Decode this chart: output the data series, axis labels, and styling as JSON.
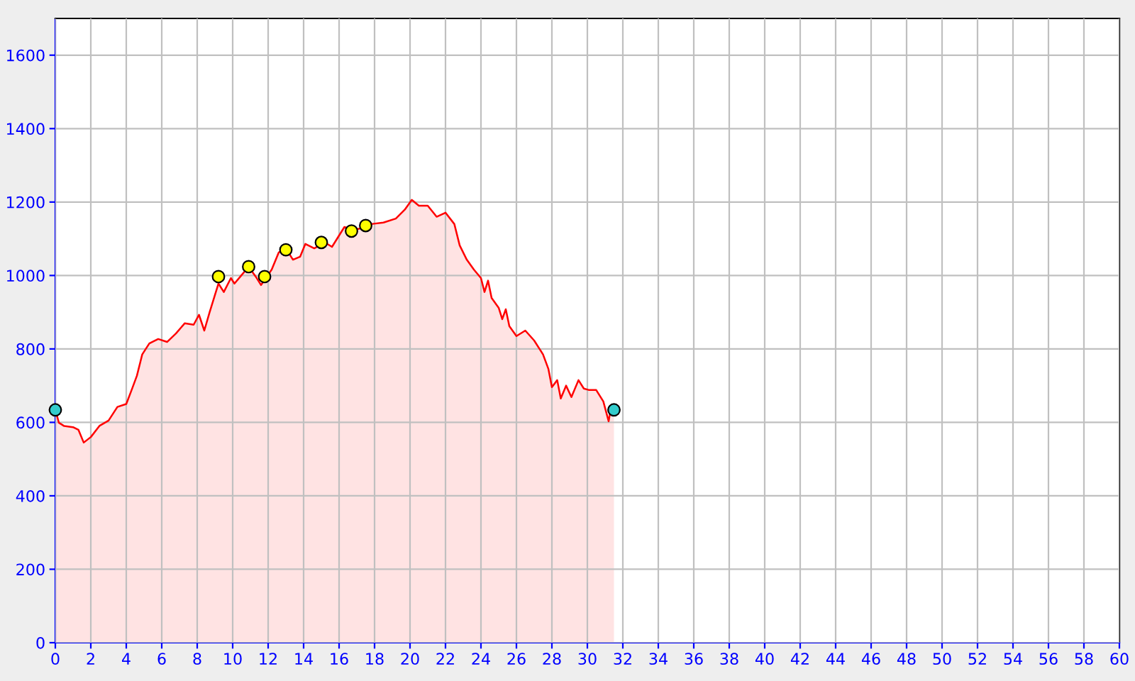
{
  "chart_data": {
    "type": "area",
    "xlim": [
      0,
      60
    ],
    "ylim": [
      0,
      1700
    ],
    "xticks": [
      0,
      2,
      4,
      6,
      8,
      10,
      12,
      14,
      16,
      18,
      20,
      22,
      24,
      26,
      28,
      30,
      32,
      34,
      36,
      38,
      40,
      42,
      44,
      46,
      48,
      50,
      52,
      54,
      56,
      58,
      60
    ],
    "yticks": [
      0,
      200,
      400,
      600,
      800,
      1000,
      1200,
      1400,
      1600
    ],
    "grid": true,
    "series": [
      {
        "color": "#ff0000",
        "x": [
          0,
          0.2,
          0.5,
          1.0,
          1.3,
          1.6,
          2,
          2.5,
          3,
          3.5,
          4,
          4.3,
          4.6,
          4.9,
          5.3,
          5.8,
          6.3,
          6.8,
          7.3,
          7.8,
          8.1,
          8.4,
          8.7,
          9.2,
          9.5,
          9.9,
          10.1,
          10.5,
          10.9,
          11.3,
          11.6,
          12.2,
          12.6,
          13,
          13.4,
          13.8,
          14.1,
          14.6,
          15.2,
          15.6,
          16.3,
          16.8,
          17.2,
          17.8,
          18.5,
          19.2,
          19.7,
          20.1,
          20.5,
          21,
          21.5,
          22,
          22.5,
          22.8,
          23.2,
          23.6,
          24,
          24.2,
          24.4,
          24.6,
          25,
          25.2,
          25.4,
          25.6,
          26,
          26.5,
          27,
          27.5,
          27.8,
          28,
          28.3,
          28.5,
          28.8,
          29.1,
          29.5,
          29.8,
          30.1,
          30.5,
          30.9,
          31.2,
          31.3,
          31.5
        ],
        "values": [
          634,
          599,
          590,
          587,
          580,
          545,
          560,
          591,
          605,
          642,
          650,
          688,
          727,
          785,
          815,
          827,
          819,
          842,
          870,
          866,
          893,
          850,
          900,
          978,
          955,
          993,
          978,
          1001,
          1024,
          997,
          974,
          1016,
          1063,
          1074,
          1043,
          1051,
          1086,
          1074,
          1090,
          1078,
          1132,
          1124,
          1128,
          1140,
          1144,
          1155,
          1179,
          1206,
          1190,
          1190,
          1160,
          1171,
          1140,
          1082,
          1043,
          1016,
          993,
          955,
          986,
          939,
          912,
          881,
          908,
          862,
          835,
          850,
          823,
          785,
          746,
          696,
          715,
          665,
          700,
          669,
          715,
          692,
          688,
          688,
          657,
          603,
          630,
          634
        ]
      },
      {
        "type": "scatter",
        "colors": [
          "#33cccc",
          "#33cccc"
        ],
        "x": [
          0,
          31.5
        ],
        "values": [
          634,
          634
        ]
      },
      {
        "type": "scatter",
        "colors": [
          "#ffff00",
          "#ffff00",
          "#ffff00",
          "#ffff00",
          "#ffff00",
          "#ffff00",
          "#ffff00"
        ],
        "x": [
          9.2,
          10.9,
          11.8,
          13.0,
          15.0,
          16.7,
          17.5
        ],
        "values": [
          997,
          1024,
          997,
          1070,
          1090,
          1121,
          1136
        ]
      }
    ]
  }
}
